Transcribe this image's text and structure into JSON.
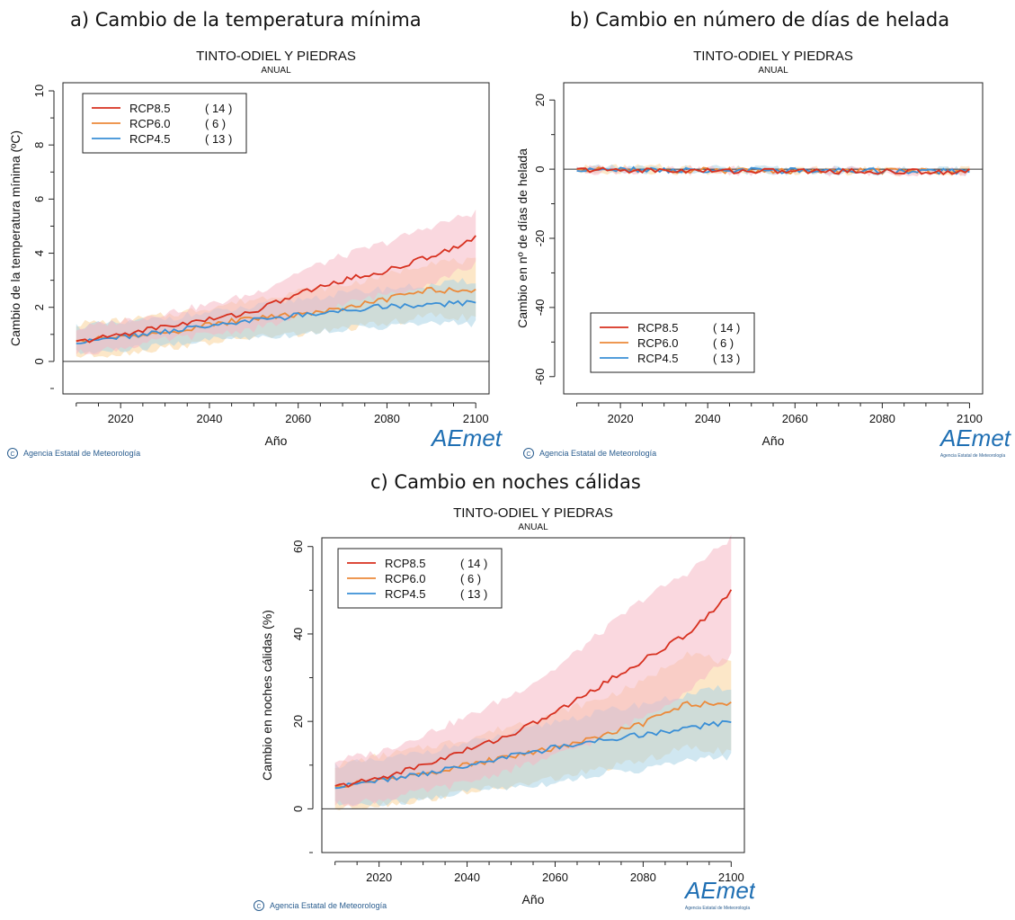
{
  "panels": [
    {
      "heading": "a) Cambio de la temperatura mínima",
      "copyright": "Agencia Estatal de Meteorología",
      "logo_text": "AEmet",
      "logo_subtext": ""
    },
    {
      "heading": "b) Cambio en número de días de helada",
      "copyright": "Agencia Estatal de Meteorología",
      "logo_text": "AEmet",
      "logo_subtext": "Agencia Estatal de Meteorología"
    },
    {
      "heading": "c) Cambio en noches cálidas",
      "copyright": "Agencia Estatal de Meteorología",
      "logo_text": "AEmet",
      "logo_subtext": "Agencia Estatal de Meteorología"
    }
  ],
  "colors": {
    "rcp85": "#d7301f",
    "rcp60": "#ec8a3a",
    "rcp45": "#3a8fd6",
    "rcp85_band": "#f6b8c4",
    "rcp60_band": "#f9d39a",
    "rcp45_band": "#a9d3e6",
    "logo": "#1f6fb3",
    "copyright_text": "#2a5d8f"
  },
  "chart_data": [
    {
      "type": "line",
      "title": "TINTO-ODIEL Y PIEDRAS",
      "subtitle": "ANUAL",
      "xlabel": "Año",
      "ylabel": "Cambio de la temperatura mínima (ºC)",
      "xlim": [
        2007,
        2103
      ],
      "ylim": [
        -1.2,
        10.3
      ],
      "xticks": [
        2020,
        2040,
        2060,
        2080,
        2100
      ],
      "yticks": [
        0,
        2,
        4,
        6,
        8,
        10
      ],
      "legend_position": "top-left",
      "x_start": 2010,
      "x_end": 2100,
      "x_step": 10,
      "series": [
        {
          "name": "RCP8.5",
          "count": "( 14 )",
          "values": [
            0.7,
            1.0,
            1.3,
            1.55,
            1.85,
            2.5,
            3.0,
            3.35,
            3.9,
            4.55
          ],
          "band_low": [
            0.3,
            0.5,
            0.8,
            1.0,
            1.2,
            1.6,
            2.1,
            2.5,
            2.9,
            3.6
          ],
          "band_high": [
            1.2,
            1.5,
            1.8,
            2.1,
            2.5,
            3.3,
            3.9,
            4.4,
            5.0,
            5.5
          ]
        },
        {
          "name": "RCP6.0",
          "count": "(   6 )",
          "values": [
            0.75,
            0.9,
            1.05,
            1.35,
            1.6,
            1.75,
            1.95,
            2.3,
            2.65,
            2.6
          ],
          "band_low": [
            0.2,
            0.3,
            0.5,
            0.7,
            0.9,
            1.0,
            1.2,
            1.4,
            1.7,
            1.6
          ],
          "band_high": [
            1.4,
            1.5,
            1.7,
            2.0,
            2.3,
            2.6,
            2.8,
            3.2,
            3.7,
            3.7
          ]
        },
        {
          "name": "RCP4.5",
          "count": "( 13 )",
          "values": [
            0.7,
            0.9,
            1.1,
            1.35,
            1.5,
            1.7,
            1.85,
            2.05,
            2.1,
            2.2
          ],
          "band_low": [
            0.3,
            0.4,
            0.6,
            0.8,
            0.9,
            1.0,
            1.2,
            1.3,
            1.4,
            1.4
          ],
          "band_high": [
            1.3,
            1.4,
            1.6,
            1.8,
            2.0,
            2.3,
            2.5,
            2.7,
            2.8,
            3.0
          ]
        }
      ]
    },
    {
      "type": "line",
      "title": "TINTO-ODIEL Y PIEDRAS",
      "subtitle": "ANUAL",
      "xlabel": "Año",
      "ylabel": "Cambio en nº de días de helada",
      "xlim": [
        2007,
        2103
      ],
      "ylim": [
        -65,
        25
      ],
      "xticks": [
        2020,
        2040,
        2060,
        2080,
        2100
      ],
      "yticks": [
        20,
        0,
        -20,
        -40,
        -60
      ],
      "legend_position": "bottom-left",
      "x_start": 2010,
      "x_end": 2100,
      "x_step": 10,
      "series": [
        {
          "name": "RCP8.5",
          "count": "( 14 )",
          "values": [
            -0.2,
            -0.3,
            -0.4,
            -0.5,
            -0.5,
            -0.6,
            -0.6,
            -0.7,
            -0.7,
            -0.7
          ],
          "band_low": [
            -0.6,
            -0.7,
            -0.8,
            -0.9,
            -1.0,
            -1.0,
            -1.1,
            -1.1,
            -1.1,
            -1.1
          ],
          "band_high": [
            0.3,
            0.3,
            0.2,
            0.1,
            0.0,
            -0.1,
            -0.2,
            -0.3,
            -0.3,
            -0.3
          ]
        },
        {
          "name": "RCP6.0",
          "count": "(   6 )",
          "values": [
            -0.2,
            -0.2,
            -0.3,
            -0.4,
            -0.4,
            -0.5,
            -0.5,
            -0.6,
            -0.6,
            -0.6
          ],
          "band_low": [
            -0.6,
            -0.6,
            -0.7,
            -0.8,
            -0.8,
            -0.9,
            -0.9,
            -1.0,
            -1.0,
            -1.0
          ],
          "band_high": [
            0.4,
            0.5,
            0.6,
            0.3,
            0.1,
            0.0,
            -0.1,
            -0.2,
            -0.2,
            -0.2
          ]
        },
        {
          "name": "RCP4.5",
          "count": "( 13 )",
          "values": [
            -0.2,
            -0.2,
            -0.3,
            -0.3,
            -0.4,
            -0.4,
            -0.5,
            -0.5,
            -0.5,
            -0.6
          ],
          "band_low": [
            -0.6,
            -0.6,
            -0.7,
            -0.7,
            -0.8,
            -0.8,
            -0.9,
            -0.9,
            -0.9,
            -1.0
          ],
          "band_high": [
            0.3,
            0.3,
            0.2,
            0.2,
            0.1,
            0.0,
            -0.1,
            -0.1,
            -0.2,
            -0.2
          ]
        }
      ]
    },
    {
      "type": "line",
      "title": "TINTO-ODIEL Y PIEDRAS",
      "subtitle": "ANUAL",
      "xlabel": "Año",
      "ylabel": "Cambio en noches cálidas (%)",
      "xlim": [
        2007,
        2103
      ],
      "ylim": [
        -10,
        62
      ],
      "xticks": [
        2020,
        2040,
        2060,
        2080,
        2100
      ],
      "yticks": [
        0,
        20,
        40,
        60
      ],
      "legend_position": "top-left",
      "x_start": 2010,
      "x_end": 2100,
      "x_step": 10,
      "series": [
        {
          "name": "RCP8.5",
          "count": "( 14 )",
          "values": [
            5,
            7,
            10,
            13.5,
            17,
            22,
            28,
            34,
            40,
            49.5
          ],
          "band_low": [
            1,
            2,
            4,
            6,
            9,
            12,
            16,
            21,
            27,
            35
          ],
          "band_high": [
            11,
            13,
            17,
            21,
            26,
            32,
            40,
            48,
            54,
            62
          ]
        },
        {
          "name": "RCP6.0",
          "count": "(   6 )",
          "values": [
            5,
            6.5,
            8,
            10,
            12,
            14,
            16.5,
            19.5,
            24,
            24
          ],
          "band_low": [
            0,
            1,
            2,
            4,
            5,
            7,
            9,
            11,
            14,
            13
          ],
          "band_high": [
            10,
            12,
            14,
            16,
            19,
            22,
            25,
            29,
            36,
            33
          ]
        },
        {
          "name": "RCP4.5",
          "count": "( 13 )",
          "values": [
            5,
            6.5,
            8,
            10,
            12,
            14,
            15.5,
            17,
            18.5,
            20
          ],
          "band_low": [
            1,
            1,
            2,
            4,
            5,
            6,
            8,
            9,
            11,
            12
          ],
          "band_high": [
            10,
            11,
            13,
            15,
            17,
            20,
            22,
            24,
            26,
            28
          ]
        }
      ]
    }
  ]
}
